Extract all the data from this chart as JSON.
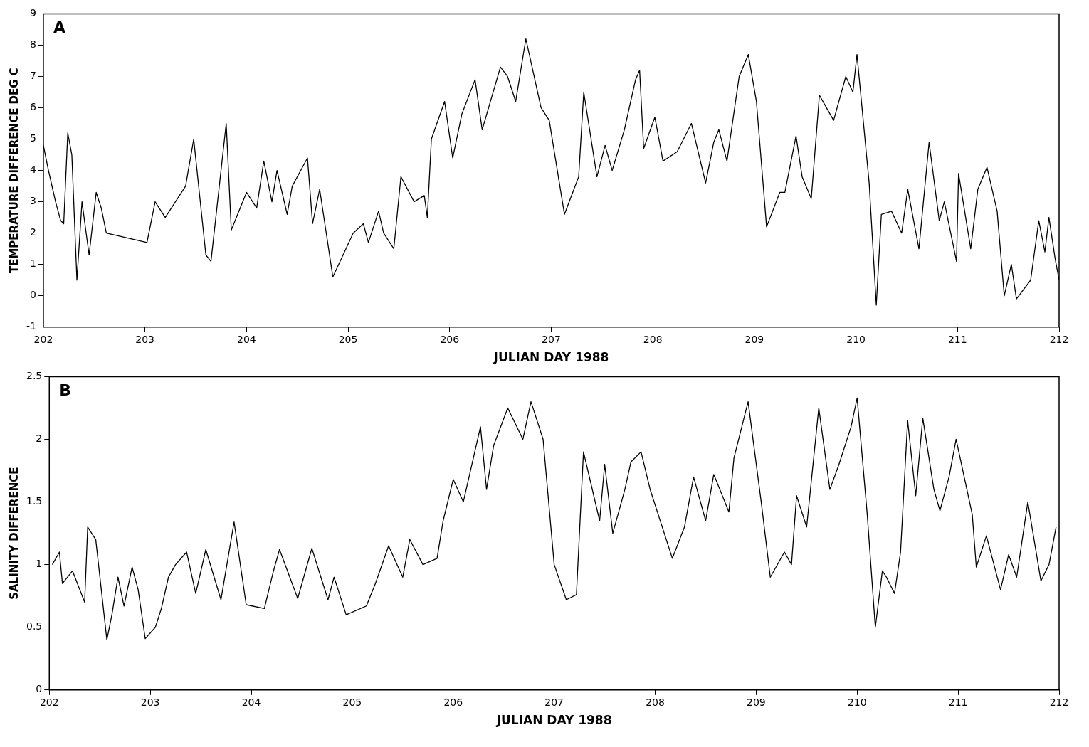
{
  "chart_data": [
    {
      "type": "line",
      "xlabel": "JULIAN DAY 1988",
      "ylabel": "TEMPERATURE DIFFERENCE DEG C",
      "annotations": [
        "A"
      ],
      "color": "#000000",
      "marker": "none",
      "line_style": "solid",
      "x": [
        202.0,
        202.05,
        202.12,
        202.17,
        202.2,
        202.24,
        202.28,
        202.33,
        202.38,
        202.45,
        202.52,
        202.57,
        202.62,
        203.02,
        203.1,
        203.2,
        203.3,
        203.4,
        203.48,
        203.6,
        203.65,
        203.8,
        203.85,
        204.0,
        204.1,
        204.17,
        204.25,
        204.3,
        204.4,
        204.45,
        204.6,
        204.65,
        204.72,
        204.85,
        205.05,
        205.15,
        205.2,
        205.3,
        205.35,
        205.45,
        205.52,
        205.65,
        205.75,
        205.78,
        205.82,
        205.95,
        206.03,
        206.12,
        206.25,
        206.32,
        206.5,
        206.57,
        206.65,
        206.75,
        206.9,
        206.98,
        207.13,
        207.27,
        207.32,
        207.45,
        207.53,
        207.6,
        207.72,
        207.83,
        207.87,
        207.91,
        208.02,
        208.1,
        208.24,
        208.38,
        208.52,
        208.6,
        208.65,
        208.73,
        208.85,
        208.94,
        209.02,
        209.12,
        209.25,
        209.3,
        209.41,
        209.47,
        209.56,
        209.64,
        209.78,
        209.9,
        209.97,
        210.01,
        210.13,
        210.2,
        210.25,
        210.35,
        210.45,
        210.51,
        210.62,
        210.72,
        210.82,
        210.87,
        210.99,
        211.01,
        211.13,
        211.2,
        211.29,
        211.39,
        211.46,
        211.53,
        211.58,
        211.72,
        211.8,
        211.86,
        211.9,
        211.96,
        212.0
      ],
      "values": [
        4.8,
        4.0,
        3.0,
        2.4,
        2.3,
        5.2,
        4.5,
        0.5,
        3.0,
        1.3,
        3.3,
        2.8,
        2.0,
        1.7,
        3.0,
        2.5,
        3.0,
        3.5,
        5.0,
        1.3,
        1.1,
        5.5,
        2.1,
        3.3,
        2.8,
        4.3,
        3.0,
        4.0,
        2.6,
        3.5,
        4.4,
        2.3,
        3.4,
        0.6,
        2.0,
        2.3,
        1.7,
        2.7,
        2.0,
        1.5,
        3.8,
        3.0,
        3.2,
        2.5,
        5.0,
        6.2,
        4.4,
        5.8,
        6.9,
        5.3,
        7.3,
        7.0,
        6.2,
        8.2,
        6.0,
        5.6,
        2.6,
        3.8,
        6.5,
        3.8,
        4.8,
        4.0,
        5.3,
        6.9,
        7.2,
        4.7,
        5.7,
        4.3,
        4.6,
        5.5,
        3.6,
        4.9,
        5.3,
        4.3,
        7.0,
        7.7,
        6.2,
        2.2,
        3.3,
        3.3,
        5.1,
        3.8,
        3.1,
        6.4,
        5.6,
        7.0,
        6.5,
        7.7,
        3.6,
        -0.3,
        2.6,
        2.7,
        2.0,
        3.4,
        1.5,
        4.9,
        2.4,
        3.0,
        1.1,
        3.9,
        1.5,
        3.4,
        4.1,
        2.7,
        0.0,
        1.0,
        -0.1,
        0.5,
        2.4,
        1.4,
        2.5,
        1.2,
        0.5
      ],
      "xlim": [
        202,
        212
      ],
      "xticks": [
        202,
        203,
        204,
        205,
        206,
        207,
        208,
        209,
        210,
        211,
        212
      ],
      "ylim": [
        -1,
        9
      ],
      "yticks": [
        -1,
        0,
        1,
        2,
        3,
        4,
        5,
        6,
        7,
        8,
        9
      ]
    },
    {
      "type": "line",
      "xlabel": "JULIAN DAY 1988",
      "ylabel": "SALINITY DIFFERENCE",
      "annotations": [
        "B"
      ],
      "color": "#000000",
      "marker": "none",
      "line_style": "solid",
      "x": [
        202.03,
        202.1,
        202.13,
        202.23,
        202.35,
        202.38,
        202.46,
        202.57,
        202.62,
        202.68,
        202.74,
        202.82,
        202.88,
        202.95,
        203.05,
        203.11,
        203.18,
        203.25,
        203.36,
        203.45,
        203.55,
        203.7,
        203.83,
        203.95,
        204.13,
        204.22,
        204.28,
        204.46,
        204.6,
        204.76,
        204.82,
        204.94,
        205.14,
        205.23,
        205.36,
        205.5,
        205.57,
        205.7,
        205.84,
        205.9,
        206.0,
        206.1,
        206.27,
        206.33,
        206.4,
        206.54,
        206.69,
        206.77,
        206.89,
        207.0,
        207.12,
        207.22,
        207.29,
        207.45,
        207.5,
        207.58,
        207.7,
        207.76,
        207.86,
        207.95,
        208.01,
        208.17,
        208.29,
        208.38,
        208.5,
        208.58,
        208.73,
        208.78,
        208.92,
        209.05,
        209.14,
        209.28,
        209.35,
        209.4,
        209.5,
        209.62,
        209.73,
        209.82,
        209.94,
        210.0,
        210.1,
        210.18,
        210.25,
        210.29,
        210.37,
        210.43,
        210.5,
        210.58,
        210.65,
        210.76,
        210.82,
        210.91,
        210.98,
        211.14,
        211.18,
        211.28,
        211.42,
        211.5,
        211.58,
        211.69,
        211.82,
        211.9,
        211.97
      ],
      "values": [
        1.0,
        1.1,
        0.85,
        0.95,
        0.7,
        1.3,
        1.2,
        0.4,
        0.6,
        0.9,
        0.67,
        0.98,
        0.8,
        0.41,
        0.5,
        0.65,
        0.9,
        1.0,
        1.1,
        0.77,
        1.12,
        0.72,
        1.34,
        0.68,
        0.65,
        0.95,
        1.12,
        0.73,
        1.13,
        0.72,
        0.9,
        0.6,
        0.67,
        0.85,
        1.15,
        0.9,
        1.2,
        1.0,
        1.05,
        1.35,
        1.68,
        1.5,
        2.1,
        1.6,
        1.95,
        2.25,
        2.0,
        2.3,
        2.0,
        1.0,
        0.72,
        0.76,
        1.9,
        1.35,
        1.8,
        1.25,
        1.6,
        1.82,
        1.9,
        1.6,
        1.45,
        1.05,
        1.3,
        1.7,
        1.35,
        1.72,
        1.42,
        1.85,
        2.3,
        1.5,
        0.9,
        1.1,
        1.0,
        1.55,
        1.3,
        2.25,
        1.6,
        1.8,
        2.1,
        2.33,
        1.4,
        0.5,
        0.95,
        0.9,
        0.77,
        1.1,
        2.15,
        1.55,
        2.17,
        1.6,
        1.43,
        1.7,
        2.0,
        1.4,
        0.98,
        1.23,
        0.8,
        1.08,
        0.9,
        1.5,
        0.87,
        1.0,
        1.3
      ],
      "xlim": [
        202,
        212
      ],
      "xticks": [
        202,
        203,
        204,
        205,
        206,
        207,
        208,
        209,
        210,
        211,
        212
      ],
      "ylim": [
        0,
        2.5
      ],
      "yticks": [
        0,
        0.5,
        1,
        1.5,
        2,
        2.5
      ]
    }
  ]
}
